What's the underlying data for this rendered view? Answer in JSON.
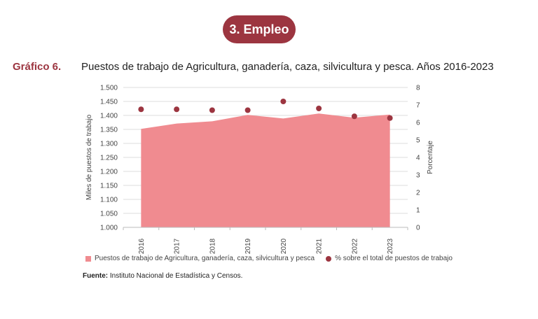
{
  "header": {
    "badge": "3. Empleo"
  },
  "figure": {
    "label": "Gráfico 6.",
    "title": "Puestos de trabajo de Agricultura, ganadería, caza, silvicultura y pesca. Años 2016-2023"
  },
  "chart_data": {
    "type": "area",
    "categories": [
      "2016",
      "2017",
      "2018",
      "2019",
      "2020",
      "2021",
      "2022",
      "2023"
    ],
    "y_left": {
      "label": "Miles de puestos de trabajo",
      "range": [
        1.0,
        1.5
      ],
      "ticks": [
        "1.000",
        "1.050",
        "1.100",
        "1.150",
        "1.200",
        "1.250",
        "1.300",
        "1.350",
        "1.400",
        "1.450",
        "1.500"
      ]
    },
    "y_right": {
      "label": "Porcentaje",
      "range": [
        0,
        8
      ],
      "ticks": [
        "0",
        "1",
        "2",
        "3",
        "4",
        "5",
        "6",
        "7",
        "8"
      ]
    },
    "series": [
      {
        "name": "Puestos de trabajo de Agricultura, ganadería, caza, silvicultura y pesca",
        "type": "area",
        "axis": "left",
        "color": "#f08b90",
        "values": [
          1.352,
          1.371,
          1.379,
          1.402,
          1.389,
          1.407,
          1.392,
          1.403
        ]
      },
      {
        "name": "% sobre el total de puestos de trabajo",
        "type": "scatter",
        "axis": "right",
        "color": "#9c3540",
        "values": [
          6.75,
          6.75,
          6.7,
          6.7,
          7.2,
          6.8,
          6.35,
          6.25
        ]
      }
    ],
    "grid": true,
    "legend": "bottom"
  },
  "source": {
    "label": "Fuente:",
    "text": " Instituto Nacional de Estadística y Censos."
  }
}
